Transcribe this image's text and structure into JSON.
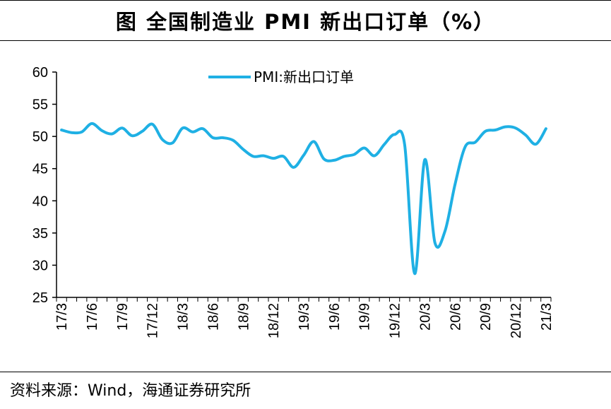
{
  "header": {
    "title": "图  全国制造业 PMI 新出口订单（%）"
  },
  "footer": {
    "source": "资料来源：Wind，海通证券研究所"
  },
  "colors": {
    "series": "#1fb0e4",
    "axis": "#000000"
  },
  "chart_data": {
    "type": "line",
    "title": "图  全国制造业 PMI 新出口订单（%）",
    "xlabel": "",
    "ylabel": "",
    "ylim": [
      25,
      60
    ],
    "yticks": [
      25,
      30,
      35,
      40,
      45,
      50,
      55,
      60
    ],
    "legend": "top-center",
    "grid": false,
    "x": [
      "17/3",
      "17/4",
      "17/5",
      "17/6",
      "17/7",
      "17/8",
      "17/9",
      "17/10",
      "17/11",
      "17/12",
      "18/1",
      "18/2",
      "18/3",
      "18/4",
      "18/5",
      "18/6",
      "18/7",
      "18/8",
      "18/9",
      "18/10",
      "18/11",
      "18/12",
      "19/1",
      "19/2",
      "19/3",
      "19/4",
      "19/5",
      "19/6",
      "19/7",
      "19/8",
      "19/9",
      "19/10",
      "19/11",
      "19/12",
      "20/1",
      "20/2",
      "20/3",
      "20/4",
      "20/5",
      "20/6",
      "20/7",
      "20/8",
      "20/9",
      "20/10",
      "20/11",
      "20/12",
      "21/1",
      "21/2",
      "21/3"
    ],
    "xtick_labels": [
      "17/3",
      "17/6",
      "17/9",
      "17/12",
      "18/3",
      "18/6",
      "18/9",
      "18/12",
      "19/3",
      "19/6",
      "19/9",
      "19/12",
      "20/3",
      "20/6",
      "20/9",
      "20/12",
      "21/3"
    ],
    "series": [
      {
        "name": "PMI:新出口订单",
        "values": [
          51.0,
          50.6,
          50.7,
          52.0,
          50.9,
          50.4,
          51.3,
          50.1,
          50.8,
          51.9,
          49.5,
          49.0,
          51.3,
          50.7,
          51.2,
          49.8,
          49.8,
          49.4,
          48.0,
          46.9,
          47.0,
          46.6,
          46.9,
          45.2,
          47.1,
          49.2,
          46.5,
          46.3,
          46.9,
          47.2,
          48.2,
          47.0,
          48.8,
          50.3,
          48.7,
          28.7,
          46.4,
          33.5,
          35.3,
          42.6,
          48.4,
          49.1,
          50.8,
          51.0,
          51.5,
          51.3,
          50.2,
          48.8,
          51.2
        ]
      }
    ]
  }
}
